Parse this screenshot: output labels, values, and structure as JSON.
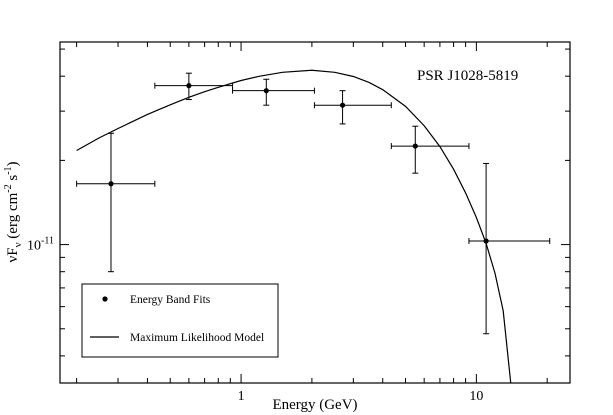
{
  "chart_data": {
    "type": "scatter",
    "annotation": "PSR J1028-5819",
    "xlabel": "Energy (GeV)",
    "ylabel_parts": {
      "main": "νF",
      "sub": "ν",
      "open": " (erg cm",
      "sup1": "-2",
      "mid": " s",
      "sup2": "-1",
      "close": ")"
    },
    "xscale": "log",
    "yscale": "log",
    "xlim": [
      0.17,
      25
    ],
    "ylim": [
      3.2e-12,
      5.3e-11
    ],
    "x_tick_labels": [
      {
        "value": 1,
        "label": "1"
      },
      {
        "value": 10,
        "label": "10"
      }
    ],
    "y_tick_labels": [
      {
        "value": 1e-11,
        "base": "10",
        "exp": "-11"
      }
    ],
    "x_major_ticks": [
      1,
      10
    ],
    "x_minor_ticks": [
      0.2,
      0.3,
      0.4,
      0.5,
      0.6,
      0.7,
      0.8,
      0.9,
      2,
      3,
      4,
      5,
      6,
      7,
      8,
      9,
      20
    ],
    "y_major_ticks": [
      1e-11
    ],
    "y_minor_ticks": [
      4e-12,
      5e-12,
      6e-12,
      7e-12,
      8e-12,
      9e-12,
      2e-11,
      3e-11,
      4e-11,
      5e-11
    ],
    "legend": {
      "placement": "bottom-left",
      "entries": [
        "Energy Band Fits",
        "Maximum Likelihood Model"
      ]
    },
    "series": [
      {
        "name": "Energy Band Fits",
        "kind": "points",
        "points": [
          {
            "x": 0.28,
            "xlo": 0.2,
            "xhi": 0.43,
            "y": 1.65e-11,
            "ylo": 8e-12,
            "yhi": 2.5e-11
          },
          {
            "x": 0.6,
            "xlo": 0.43,
            "xhi": 0.92,
            "y": 3.7e-11,
            "ylo": 3.3e-11,
            "yhi": 4.1e-11
          },
          {
            "x": 1.28,
            "xlo": 0.92,
            "xhi": 2.05,
            "y": 3.55e-11,
            "ylo": 3.15e-11,
            "yhi": 3.9e-11
          },
          {
            "x": 2.7,
            "xlo": 2.05,
            "xhi": 4.35,
            "y": 3.15e-11,
            "ylo": 2.7e-11,
            "yhi": 3.55e-11
          },
          {
            "x": 5.5,
            "xlo": 4.35,
            "xhi": 9.3,
            "y": 2.25e-11,
            "ylo": 1.8e-11,
            "yhi": 2.65e-11
          },
          {
            "x": 11.0,
            "xlo": 9.3,
            "xhi": 20.5,
            "y": 1.03e-11,
            "ylo": 4.8e-12,
            "yhi": 1.95e-11
          }
        ]
      },
      {
        "name": "Maximum Likelihood Model",
        "kind": "line",
        "x": [
          0.2,
          0.25,
          0.3,
          0.4,
          0.5,
          0.6,
          0.7,
          0.8,
          1.0,
          1.2,
          1.5,
          2.0,
          2.5,
          3.0,
          3.5,
          4.0,
          5.0,
          6.0,
          7.0,
          8.0,
          9.0,
          10.0,
          11.0,
          12.0,
          13.0,
          14.0
        ],
        "y": [
          2.17e-11,
          2.41e-11,
          2.6e-11,
          2.92e-11,
          3.16e-11,
          3.36e-11,
          3.52e-11,
          3.65e-11,
          3.86e-11,
          4e-11,
          4.13e-11,
          4.2e-11,
          4.13e-11,
          3.99e-11,
          3.8e-11,
          3.58e-11,
          3.12e-11,
          2.66e-11,
          2.24e-11,
          1.86e-11,
          1.53e-11,
          1.25e-11,
          1.01e-11,
          7.9e-12,
          5.8e-12,
          3.2e-12
        ]
      }
    ]
  }
}
